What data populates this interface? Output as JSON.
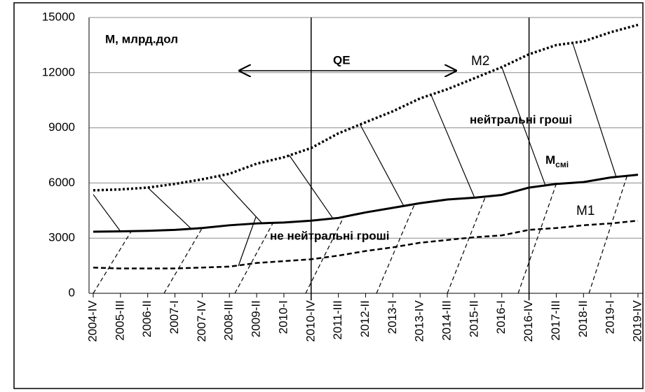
{
  "chart_data": {
    "type": "line",
    "title": "M, млрд.дол",
    "annotations": [
      "QE",
      "M2",
      "нейтральні гроші",
      "M",
      "смі",
      "M1",
      "не нейтральні гроші"
    ],
    "categories": [
      "2004-IV",
      "2005-III",
      "2006-II",
      "2007-I",
      "2007-IV",
      "2008-III",
      "2009-II",
      "2010-I",
      "2010-IV",
      "2011-III",
      "2012-II",
      "2013-I",
      "2013-IV",
      "2014-III",
      "2015-II",
      "2016-I",
      "2016-IV",
      "2017-III",
      "2018-II",
      "2019-I",
      "2019-IV"
    ],
    "series": [
      {
        "name": "M2",
        "color": "#000000",
        "style": "dotted",
        "values": [
          5600,
          5650,
          5750,
          5950,
          6200,
          6500,
          7050,
          7400,
          7900,
          8700,
          9300,
          9900,
          10600,
          11100,
          11700,
          12300,
          13000,
          13500,
          13700,
          14200,
          14600
        ]
      },
      {
        "name": "Mсмі",
        "color": "#000000",
        "style": "solid",
        "values": [
          3350,
          3370,
          3400,
          3450,
          3550,
          3700,
          3800,
          3850,
          3950,
          4100,
          4400,
          4650,
          4900,
          5100,
          5200,
          5350,
          5750,
          5950,
          6050,
          6300,
          6450
        ]
      },
      {
        "name": "M1",
        "color": "#000000",
        "style": "dashed",
        "values": [
          1400,
          1350,
          1350,
          1350,
          1400,
          1450,
          1650,
          1750,
          1850,
          2050,
          2300,
          2500,
          2750,
          2900,
          3050,
          3150,
          3450,
          3550,
          3700,
          3800,
          3950
        ]
      }
    ],
    "ylim": [
      0,
      15000
    ],
    "yticks": [
      0,
      3000,
      6000,
      9000,
      12000,
      15000
    ],
    "grid": true
  }
}
